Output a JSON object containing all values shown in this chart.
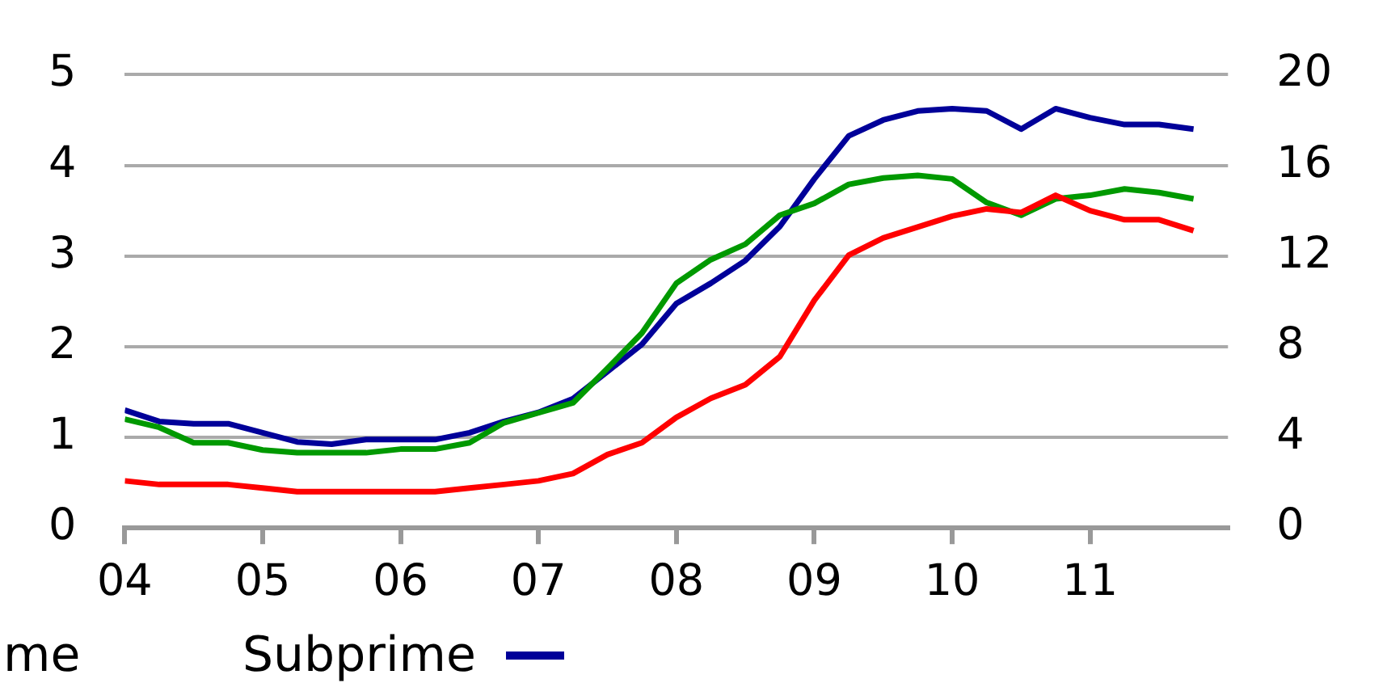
{
  "chart_data": {
    "type": "line",
    "x": [
      2004,
      2004.25,
      2004.5,
      2004.75,
      2005,
      2005.25,
      2005.5,
      2005.75,
      2006,
      2006.25,
      2006.5,
      2006.75,
      2007,
      2007.25,
      2007.5,
      2007.75,
      2008,
      2008.25,
      2008.5,
      2008.75,
      2009,
      2009.25,
      2009.5,
      2009.75,
      2010,
      2010.25,
      2010.5,
      2010.75,
      2011,
      2011.25,
      2011.5,
      2011.75
    ],
    "series": [
      {
        "color": "#ff0000",
        "values": [
          0.52,
          0.48,
          0.48,
          0.48,
          0.44,
          0.4,
          0.4,
          0.4,
          0.4,
          0.4,
          0.44,
          0.48,
          0.52,
          0.6,
          0.81,
          0.94,
          1.22,
          1.43,
          1.58,
          1.89,
          2.51,
          3.01,
          3.2,
          3.32,
          3.44,
          3.52,
          3.48,
          3.67,
          3.5,
          3.4,
          3.4,
          3.28
        ]
      },
      {
        "color": "#009900",
        "values": [
          1.2,
          1.11,
          0.94,
          0.94,
          0.86,
          0.83,
          0.83,
          0.83,
          0.87,
          0.87,
          0.94,
          1.16,
          1.27,
          1.38,
          1.76,
          2.15,
          2.7,
          2.96,
          3.13,
          3.45,
          3.58,
          3.79,
          3.86,
          3.89,
          3.85,
          3.59,
          3.45,
          3.63,
          3.67,
          3.74,
          3.7,
          3.63
        ]
      },
      {
        "name": "Subprime",
        "color": "#000099",
        "axis": "y2",
        "values": [
          5.2,
          4.7,
          4.6,
          4.6,
          4.2,
          3.8,
          3.7,
          3.9,
          3.9,
          3.9,
          4.2,
          4.7,
          5.1,
          5.7,
          6.9,
          8.1,
          9.9,
          10.8,
          11.8,
          13.3,
          15.4,
          17.3,
          18.0,
          18.4,
          18.5,
          18.4,
          17.6,
          18.5,
          18.1,
          17.8,
          17.8,
          17.6
        ]
      }
    ],
    "xlim": [
      2004,
      2012
    ],
    "xticks": [
      {
        "value": 2004,
        "label": "04"
      },
      {
        "value": 2005,
        "label": "05"
      },
      {
        "value": 2006,
        "label": "06"
      },
      {
        "value": 2007,
        "label": "07"
      },
      {
        "value": 2008,
        "label": "08"
      },
      {
        "value": 2009,
        "label": "09"
      },
      {
        "value": 2010,
        "label": "10"
      },
      {
        "value": 2011,
        "label": "11"
      }
    ],
    "ylim": [
      0,
      5
    ],
    "yticks": [
      0,
      1,
      2,
      3,
      4,
      5
    ],
    "y2lim": [
      0,
      20
    ],
    "y2ticks": [
      0,
      4,
      8,
      12,
      16,
      20
    ],
    "grid": "y",
    "legend": "bottom",
    "marker": "none",
    "line_style": "solid",
    "annotations": [
      "me"
    ]
  }
}
